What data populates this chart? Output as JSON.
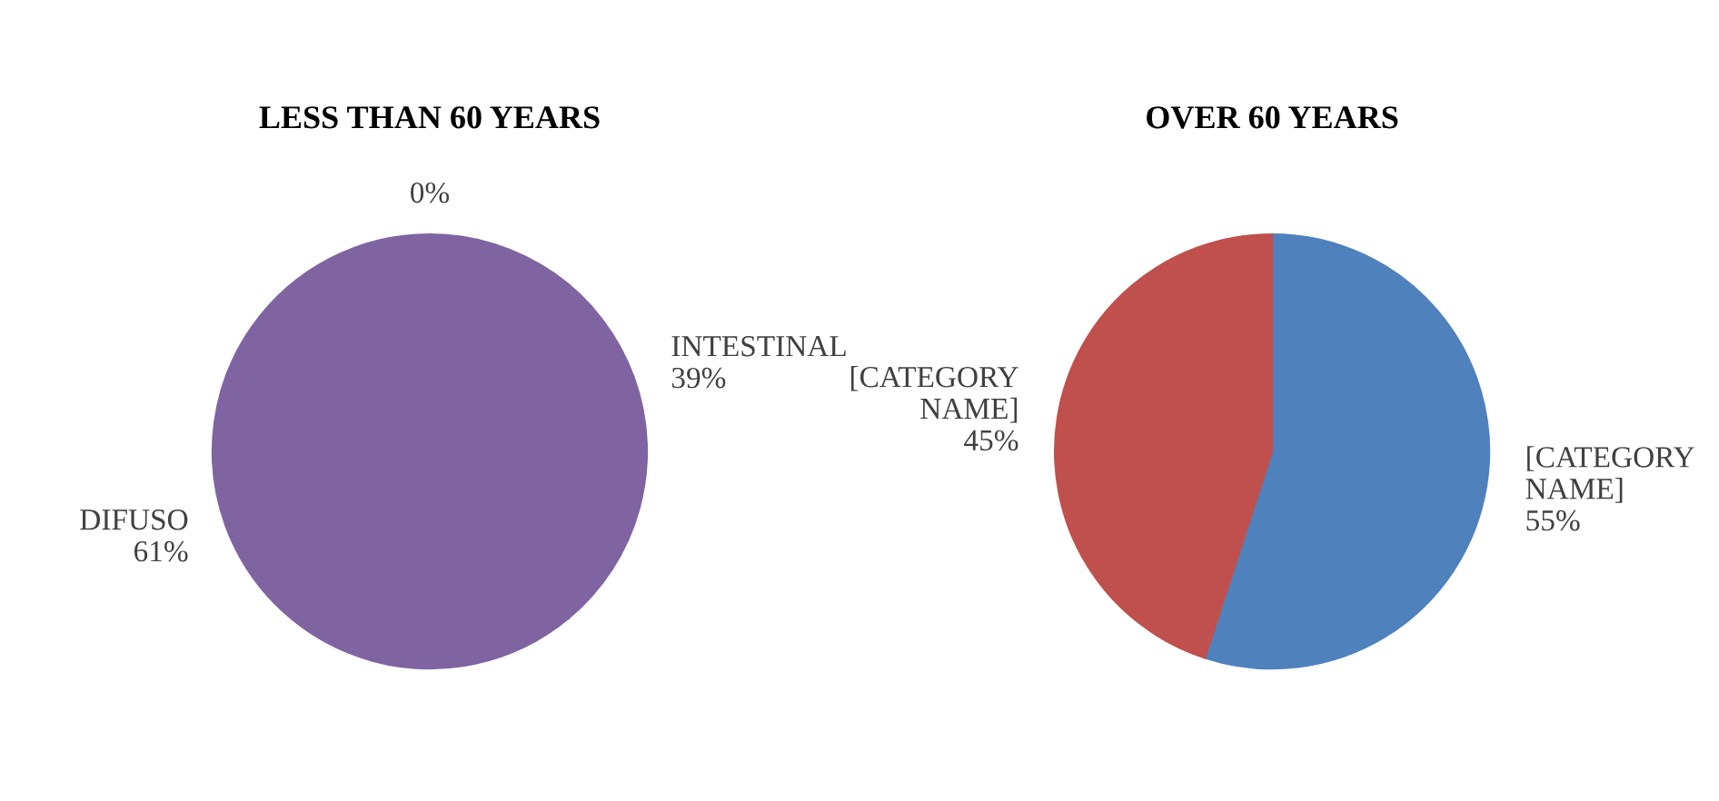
{
  "chart_data": [
    {
      "type": "pie",
      "title": "LESS THAN 60 YEARS",
      "categories": [
        "INTESTINAL",
        "DIFUSO",
        null
      ],
      "values": [
        39,
        61,
        0
      ],
      "value_labels": [
        "39%",
        "61%",
        "0%"
      ],
      "colors": [
        "#8064a2",
        "#8064a2",
        "#8064a2"
      ]
    },
    {
      "type": "pie",
      "title": "OVER 60 YEARS",
      "categories": [
        "[CATEGORY NAME]",
        "[CATEGORY NAME]"
      ],
      "values": [
        55,
        45
      ],
      "value_labels": [
        "55%",
        "45%"
      ],
      "colors": [
        "#4f81bd",
        "#c0504d"
      ]
    }
  ]
}
